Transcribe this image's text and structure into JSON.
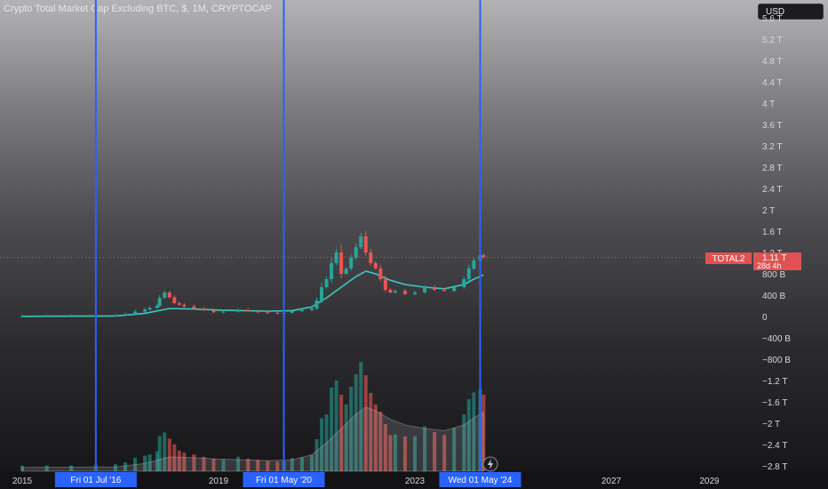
{
  "header": {
    "title": "Crypto Total Market Cap Excluding BTC, $, 1M, CRYPTOCAP",
    "currency_button": "USD"
  },
  "price_tag": {
    "symbol": "TOTAL2",
    "value": "1.11 T",
    "countdown": "28d 4h"
  },
  "colors": {
    "up": "#26a69a",
    "down": "#ef5350",
    "ma": "#3cc9c1",
    "marker_line": "#2962ff",
    "price_tag": "#e05252"
  },
  "chart_data": {
    "type": "candlestick",
    "title": "Crypto Total Market Cap Excluding BTC, $, 1M, CRYPTOCAP",
    "y_axis": {
      "unit": "USD",
      "ticks": [
        "5.6 T",
        "5.2 T",
        "4.8 T",
        "4.4 T",
        "4 T",
        "3.6 T",
        "3.2 T",
        "2.8 T",
        "2.4 T",
        "2 T",
        "1.6 T",
        "1.2 T",
        "800 B",
        "400 B",
        "0",
        "−400 B",
        "−800 B",
        "−1.2 T",
        "−1.6 T",
        "−2 T",
        "−2.4 T",
        "−2.8 T"
      ],
      "tick_values": [
        5.6,
        5.2,
        4.8,
        4.4,
        4.0,
        3.6,
        3.2,
        2.8,
        2.4,
        2.0,
        1.6,
        1.2,
        0.8,
        0.4,
        0,
        -0.4,
        -0.8,
        -1.2,
        -1.6,
        -2.0,
        -2.4,
        -2.8
      ],
      "range": [
        -2.8,
        5.6
      ]
    },
    "x_axis": {
      "ticks": [
        "2015",
        "2019",
        "2023",
        "2027",
        "2029"
      ],
      "tick_years": [
        2015,
        2019,
        2023,
        2027,
        2029
      ]
    },
    "markers": [
      {
        "label": "Fri 01 Jul '16",
        "year": 2016.5
      },
      {
        "label": "Fri 01 May '20",
        "year": 2020.33
      },
      {
        "label": "Wed 01 May '24",
        "year": 2024.33
      }
    ],
    "current_price": 1.11,
    "series": [
      {
        "kind": "candles",
        "points": [
          [
            2014.0,
            0.005
          ],
          [
            2014.5,
            0.004
          ],
          [
            2015.0,
            0.004
          ],
          [
            2015.5,
            0.005
          ],
          [
            2016.0,
            0.006
          ],
          [
            2016.5,
            0.012
          ],
          [
            2016.9,
            0.02
          ],
          [
            2017.1,
            0.04
          ],
          [
            2017.3,
            0.09
          ],
          [
            2017.5,
            0.13
          ],
          [
            2017.6,
            0.16
          ],
          [
            2017.75,
            0.2
          ],
          [
            2017.8,
            0.35
          ],
          [
            2017.9,
            0.45
          ],
          [
            2018.0,
            0.36
          ],
          [
            2018.1,
            0.25
          ],
          [
            2018.2,
            0.22
          ],
          [
            2018.3,
            0.19
          ],
          [
            2018.5,
            0.15
          ],
          [
            2018.7,
            0.12
          ],
          [
            2018.9,
            0.08
          ],
          [
            2019.1,
            0.09
          ],
          [
            2019.4,
            0.12
          ],
          [
            2019.6,
            0.1
          ],
          [
            2019.8,
            0.08
          ],
          [
            2020.0,
            0.07
          ],
          [
            2020.2,
            0.06
          ],
          [
            2020.33,
            0.07
          ],
          [
            2020.5,
            0.1
          ],
          [
            2020.7,
            0.12
          ],
          [
            2020.9,
            0.15
          ],
          [
            2021.0,
            0.3
          ],
          [
            2021.1,
            0.55
          ],
          [
            2021.2,
            0.7
          ],
          [
            2021.3,
            1.0
          ],
          [
            2021.4,
            1.2
          ],
          [
            2021.5,
            0.8
          ],
          [
            2021.6,
            0.9
          ],
          [
            2021.7,
            1.1
          ],
          [
            2021.8,
            1.3
          ],
          [
            2021.9,
            1.5
          ],
          [
            2022.0,
            1.2
          ],
          [
            2022.1,
            1.0
          ],
          [
            2022.2,
            0.9
          ],
          [
            2022.3,
            0.7
          ],
          [
            2022.4,
            0.5
          ],
          [
            2022.5,
            0.45
          ],
          [
            2022.6,
            0.48
          ],
          [
            2022.8,
            0.42
          ],
          [
            2023.0,
            0.45
          ],
          [
            2023.2,
            0.55
          ],
          [
            2023.4,
            0.5
          ],
          [
            2023.6,
            0.48
          ],
          [
            2023.8,
            0.55
          ],
          [
            2024.0,
            0.7
          ],
          [
            2024.1,
            0.9
          ],
          [
            2024.2,
            1.05
          ],
          [
            2024.33,
            1.15
          ],
          [
            2024.4,
            1.11
          ]
        ]
      },
      {
        "kind": "moving_average",
        "points": [
          [
            2015.0,
            0.004
          ],
          [
            2016.0,
            0.006
          ],
          [
            2016.9,
            0.01
          ],
          [
            2017.5,
            0.06
          ],
          [
            2018.0,
            0.15
          ],
          [
            2018.5,
            0.14
          ],
          [
            2019.0,
            0.12
          ],
          [
            2019.5,
            0.11
          ],
          [
            2020.0,
            0.1
          ],
          [
            2020.5,
            0.11
          ],
          [
            2020.9,
            0.18
          ],
          [
            2021.2,
            0.35
          ],
          [
            2021.5,
            0.55
          ],
          [
            2021.8,
            0.75
          ],
          [
            2022.0,
            0.85
          ],
          [
            2022.2,
            0.8
          ],
          [
            2022.5,
            0.68
          ],
          [
            2022.8,
            0.6
          ],
          [
            2023.2,
            0.55
          ],
          [
            2023.6,
            0.52
          ],
          [
            2024.0,
            0.6
          ],
          [
            2024.2,
            0.7
          ],
          [
            2024.4,
            0.78
          ]
        ]
      }
    ]
  }
}
